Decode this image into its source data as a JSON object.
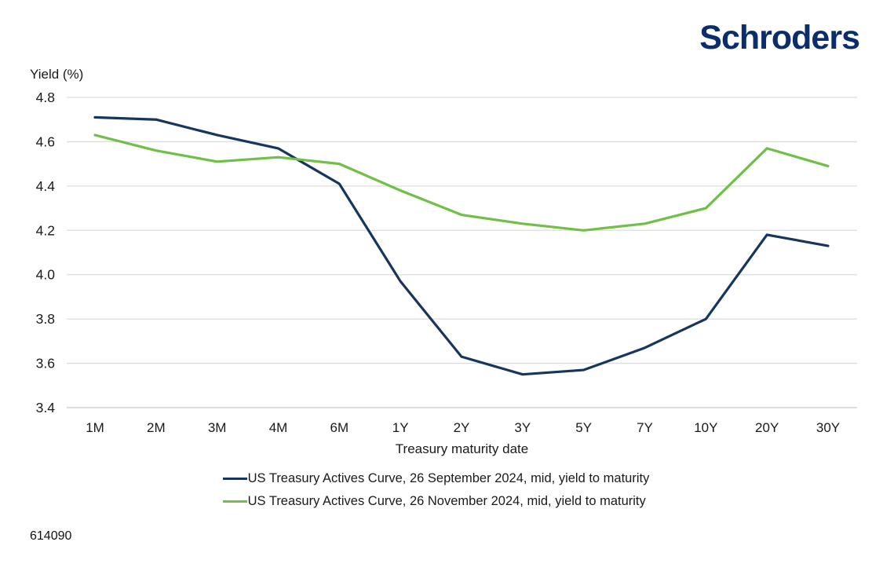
{
  "brand": {
    "logo_text": "Schroders",
    "logo_color": "#0c2d6b"
  },
  "footnote": "614090",
  "chart_data": {
    "type": "line",
    "ylabel": "Yield (%)",
    "xlabel": "Treasury maturity date",
    "categories": [
      "1M",
      "2M",
      "3M",
      "4M",
      "6M",
      "1Y",
      "2Y",
      "3Y",
      "5Y",
      "7Y",
      "10Y",
      "20Y",
      "30Y"
    ],
    "series": [
      {
        "name": "US Treasury Actives Curve, 26 September 2024, mid, yield to maturity",
        "color": "#17365d",
        "values": [
          4.71,
          4.7,
          4.63,
          4.57,
          4.41,
          3.97,
          3.63,
          3.55,
          3.57,
          3.67,
          3.8,
          4.18,
          4.13
        ]
      },
      {
        "name": "US Treasury Actives Curve, 26 November 2024, mid, yield to maturity",
        "color": "#70bf47",
        "values": [
          4.63,
          4.56,
          4.51,
          4.53,
          4.5,
          4.38,
          4.27,
          4.23,
          4.2,
          4.23,
          4.3,
          4.57,
          4.49
        ]
      }
    ],
    "y_ticks": [
      4.8,
      4.6,
      4.4,
      4.2,
      4.0,
      3.8,
      3.6,
      3.4
    ],
    "ylim": [
      3.4,
      4.8
    ],
    "grid": "horizontal",
    "gridline_color": "#dcdcdc",
    "baseline_color": "#c6c6c6",
    "legend_position": "bottom"
  }
}
